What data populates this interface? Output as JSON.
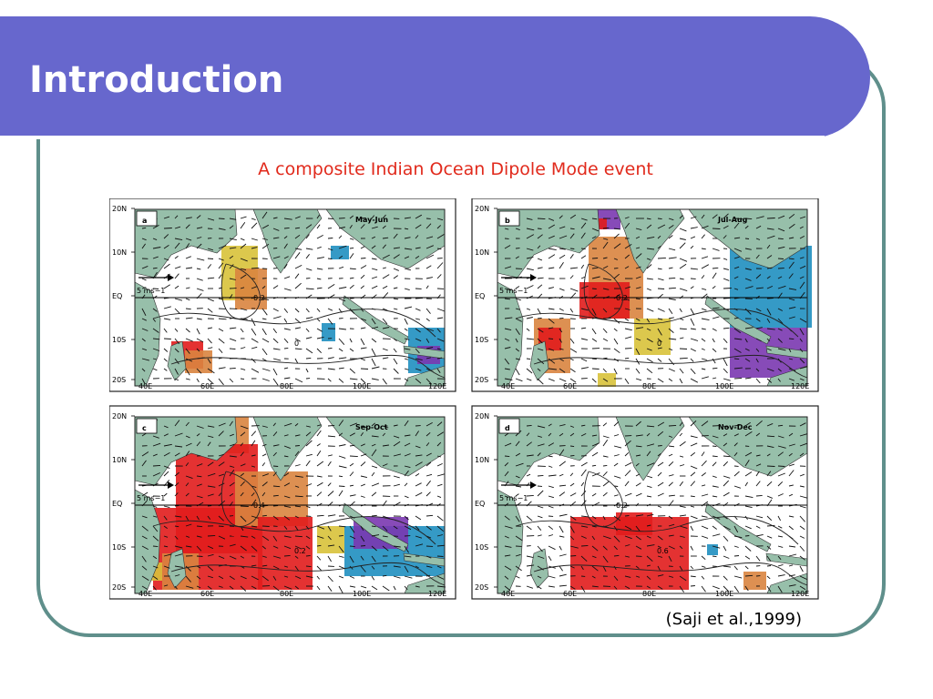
{
  "slide": {
    "title": "Introduction",
    "subtitle": "A composite Indian Ocean Dipole Mode event",
    "citation": "(Saji et al.,1999)"
  },
  "figure": {
    "lat_labels": [
      "20N",
      "10N",
      "EQ",
      "10S",
      "20S"
    ],
    "lon_labels": [
      "40E",
      "60E",
      "80E",
      "100E",
      "120E"
    ],
    "scale_label": "5 ms−1",
    "panels": [
      {
        "letter": "a",
        "season": "May-Jun",
        "contours": [
          "0.2",
          "0"
        ]
      },
      {
        "letter": "b",
        "season": "Jul-Aug",
        "contours": [
          "0.2",
          "0"
        ]
      },
      {
        "letter": "c",
        "season": "Sep-Oct",
        "contours": [
          "0.4",
          "0.2"
        ]
      },
      {
        "letter": "d",
        "season": "Nov-Dec",
        "contours": [
          "0.2",
          "0.6"
        ]
      }
    ],
    "colors": {
      "land": "#97bfaa",
      "warm_orange": "#d9843f",
      "warm_yellow": "#d8c23a",
      "warm_red": "#e11c1c",
      "cool_blue": "#1f8fc0",
      "cool_purple": "#7a37b0"
    }
  }
}
